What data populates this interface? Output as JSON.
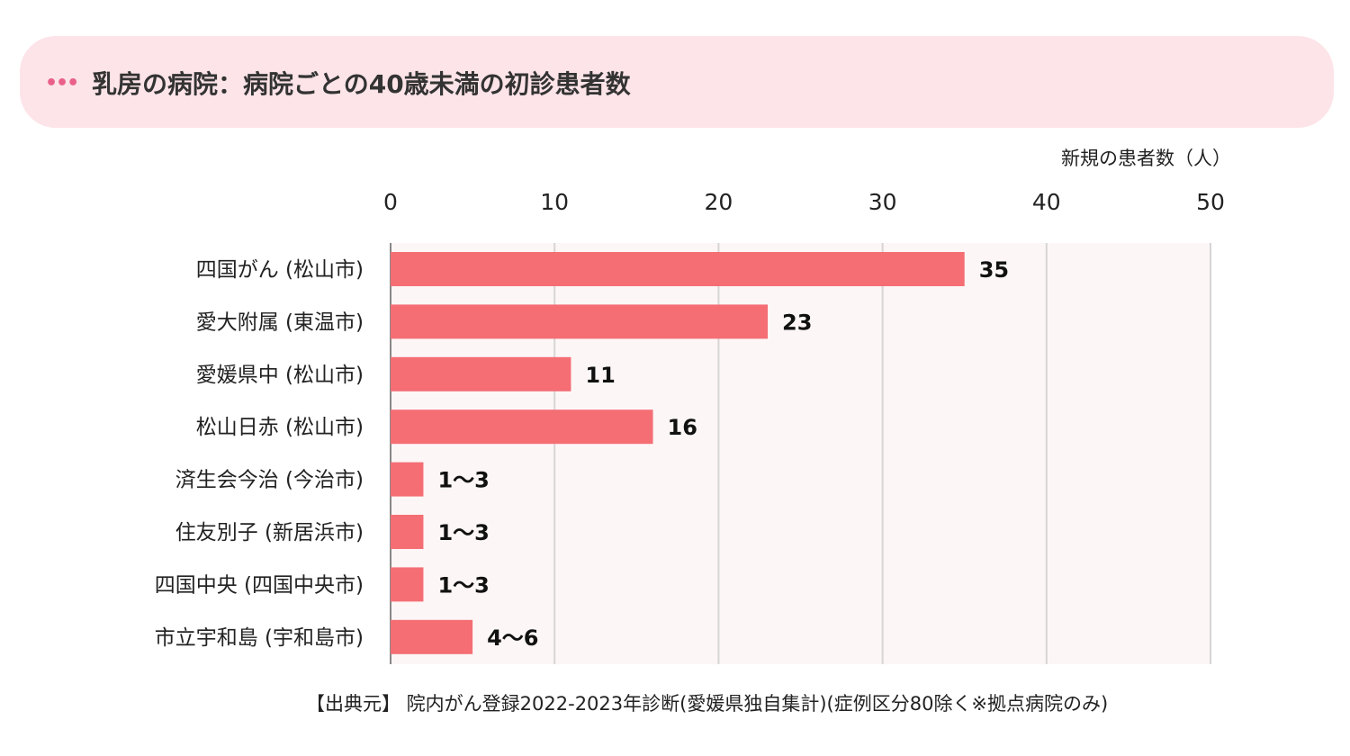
{
  "header": {
    "title": "乳房の病院：病院ごとの40歳未満の初診患者数",
    "dots_icon": "more-dots-icon"
  },
  "chart_data": {
    "type": "bar",
    "orientation": "horizontal",
    "xlabel": "新規の患者数（人）",
    "xlim": [
      0,
      50
    ],
    "xticks": [
      "0",
      "10",
      "20",
      "30",
      "40",
      "50"
    ],
    "grid": true,
    "bar_color": "#f46e74",
    "plot_background": "#fdf6f6",
    "categories": [
      "四国がん (松山市)",
      "愛大附属 (東温市)",
      "愛媛県中 (松山市)",
      "松山日赤 (松山市)",
      "済生会今治 (今治市)",
      "住友別子 (新居浜市)",
      "四国中央 (四国中央市)",
      "市立宇和島 (宇和島市)"
    ],
    "values": [
      35,
      23,
      11,
      16,
      2,
      2,
      2,
      5
    ],
    "labels": [
      "35",
      "23",
      "11",
      "16",
      "1〜3",
      "1〜3",
      "1〜3",
      "4〜6"
    ]
  },
  "footer": {
    "source": "【出典元】 院内がん登録2022-2023年診断(愛媛県独自集計)(症例区分80除く※拠点病院のみ)"
  }
}
